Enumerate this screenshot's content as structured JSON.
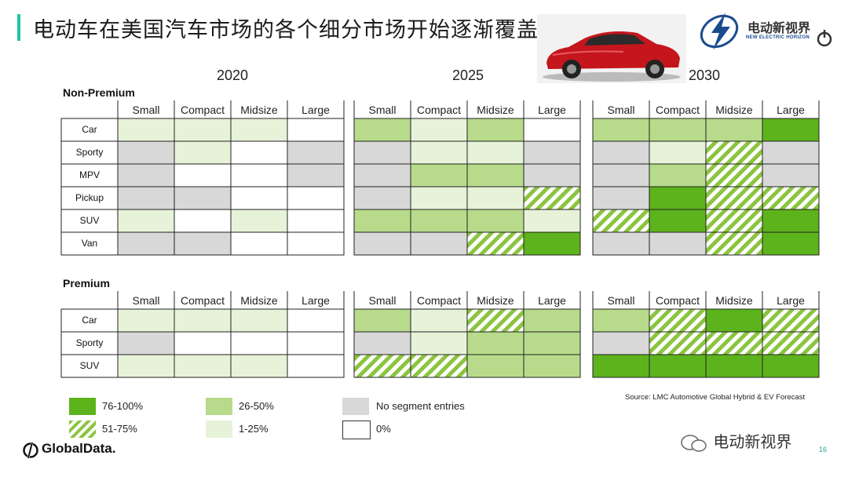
{
  "header": {
    "title": "电动车在美国汽车市场的各个细分市场开始逐渐覆盖",
    "brand_cn": "电动新视界",
    "brand_en": "NEW ELECTRIC HORIZON"
  },
  "chart_data": {
    "type": "table",
    "years": [
      "2020",
      "2025",
      "2030"
    ],
    "sizes": [
      "Small",
      "Compact",
      "Midsize",
      "Large"
    ],
    "levels": {
      "f": "76-100%",
      "h": "51-75%",
      "m": "26-50%",
      "l": "1-25%",
      "g": "No segment entries",
      "w": "0%"
    },
    "colors": {
      "f": "#5db31c",
      "h_stripe": "#8bc43f",
      "m": "#b7db8b",
      "l": "#e6f3d9",
      "g": "#d8d8d8",
      "w": "#ffffff"
    },
    "sections": [
      {
        "name": "Non-Premium",
        "rows": [
          "Car",
          "Sporty",
          "MPV",
          "Pickup",
          "SUV",
          "Van"
        ],
        "grids": [
          [
            [
              "l",
              "l",
              "l",
              "w"
            ],
            [
              "g",
              "l",
              "w",
              "g"
            ],
            [
              "g",
              "w",
              "w",
              "g"
            ],
            [
              "g",
              "g",
              "w",
              "w"
            ],
            [
              "l",
              "w",
              "l",
              "w"
            ],
            [
              "g",
              "g",
              "w",
              "w"
            ]
          ],
          [
            [
              "m",
              "l",
              "m",
              "w"
            ],
            [
              "g",
              "l",
              "l",
              "g"
            ],
            [
              "g",
              "m",
              "m",
              "g"
            ],
            [
              "g",
              "l",
              "l",
              "h"
            ],
            [
              "m",
              "m",
              "m",
              "l"
            ],
            [
              "g",
              "g",
              "h",
              "f"
            ]
          ],
          [
            [
              "m",
              "m",
              "m",
              "f"
            ],
            [
              "g",
              "l",
              "h",
              "g"
            ],
            [
              "g",
              "m",
              "h",
              "g"
            ],
            [
              "g",
              "f",
              "h",
              "h"
            ],
            [
              "h",
              "f",
              "h",
              "f"
            ],
            [
              "g",
              "g",
              "h",
              "f"
            ]
          ]
        ]
      },
      {
        "name": "Premium",
        "rows": [
          "Car",
          "Sporty",
          "SUV"
        ],
        "grids": [
          [
            [
              "l",
              "l",
              "l",
              "w"
            ],
            [
              "g",
              "w",
              "w",
              "w"
            ],
            [
              "l",
              "l",
              "l",
              "w"
            ]
          ],
          [
            [
              "m",
              "l",
              "h",
              "m"
            ],
            [
              "g",
              "l",
              "m",
              "m"
            ],
            [
              "h",
              "h",
              "m",
              "m"
            ]
          ],
          [
            [
              "m",
              "h",
              "f",
              "h"
            ],
            [
              "g",
              "h",
              "h",
              "h"
            ],
            [
              "f",
              "f",
              "f",
              "f"
            ]
          ]
        ]
      }
    ],
    "legend_order": [
      "f",
      "m",
      "g",
      "h",
      "l",
      "w"
    ]
  },
  "source": "Source: LMC Automotive Global Hybrid & EV Forecast",
  "footer": {
    "logo": "GlobalData.",
    "watermark": "电动新视界",
    "page_number": "16"
  }
}
